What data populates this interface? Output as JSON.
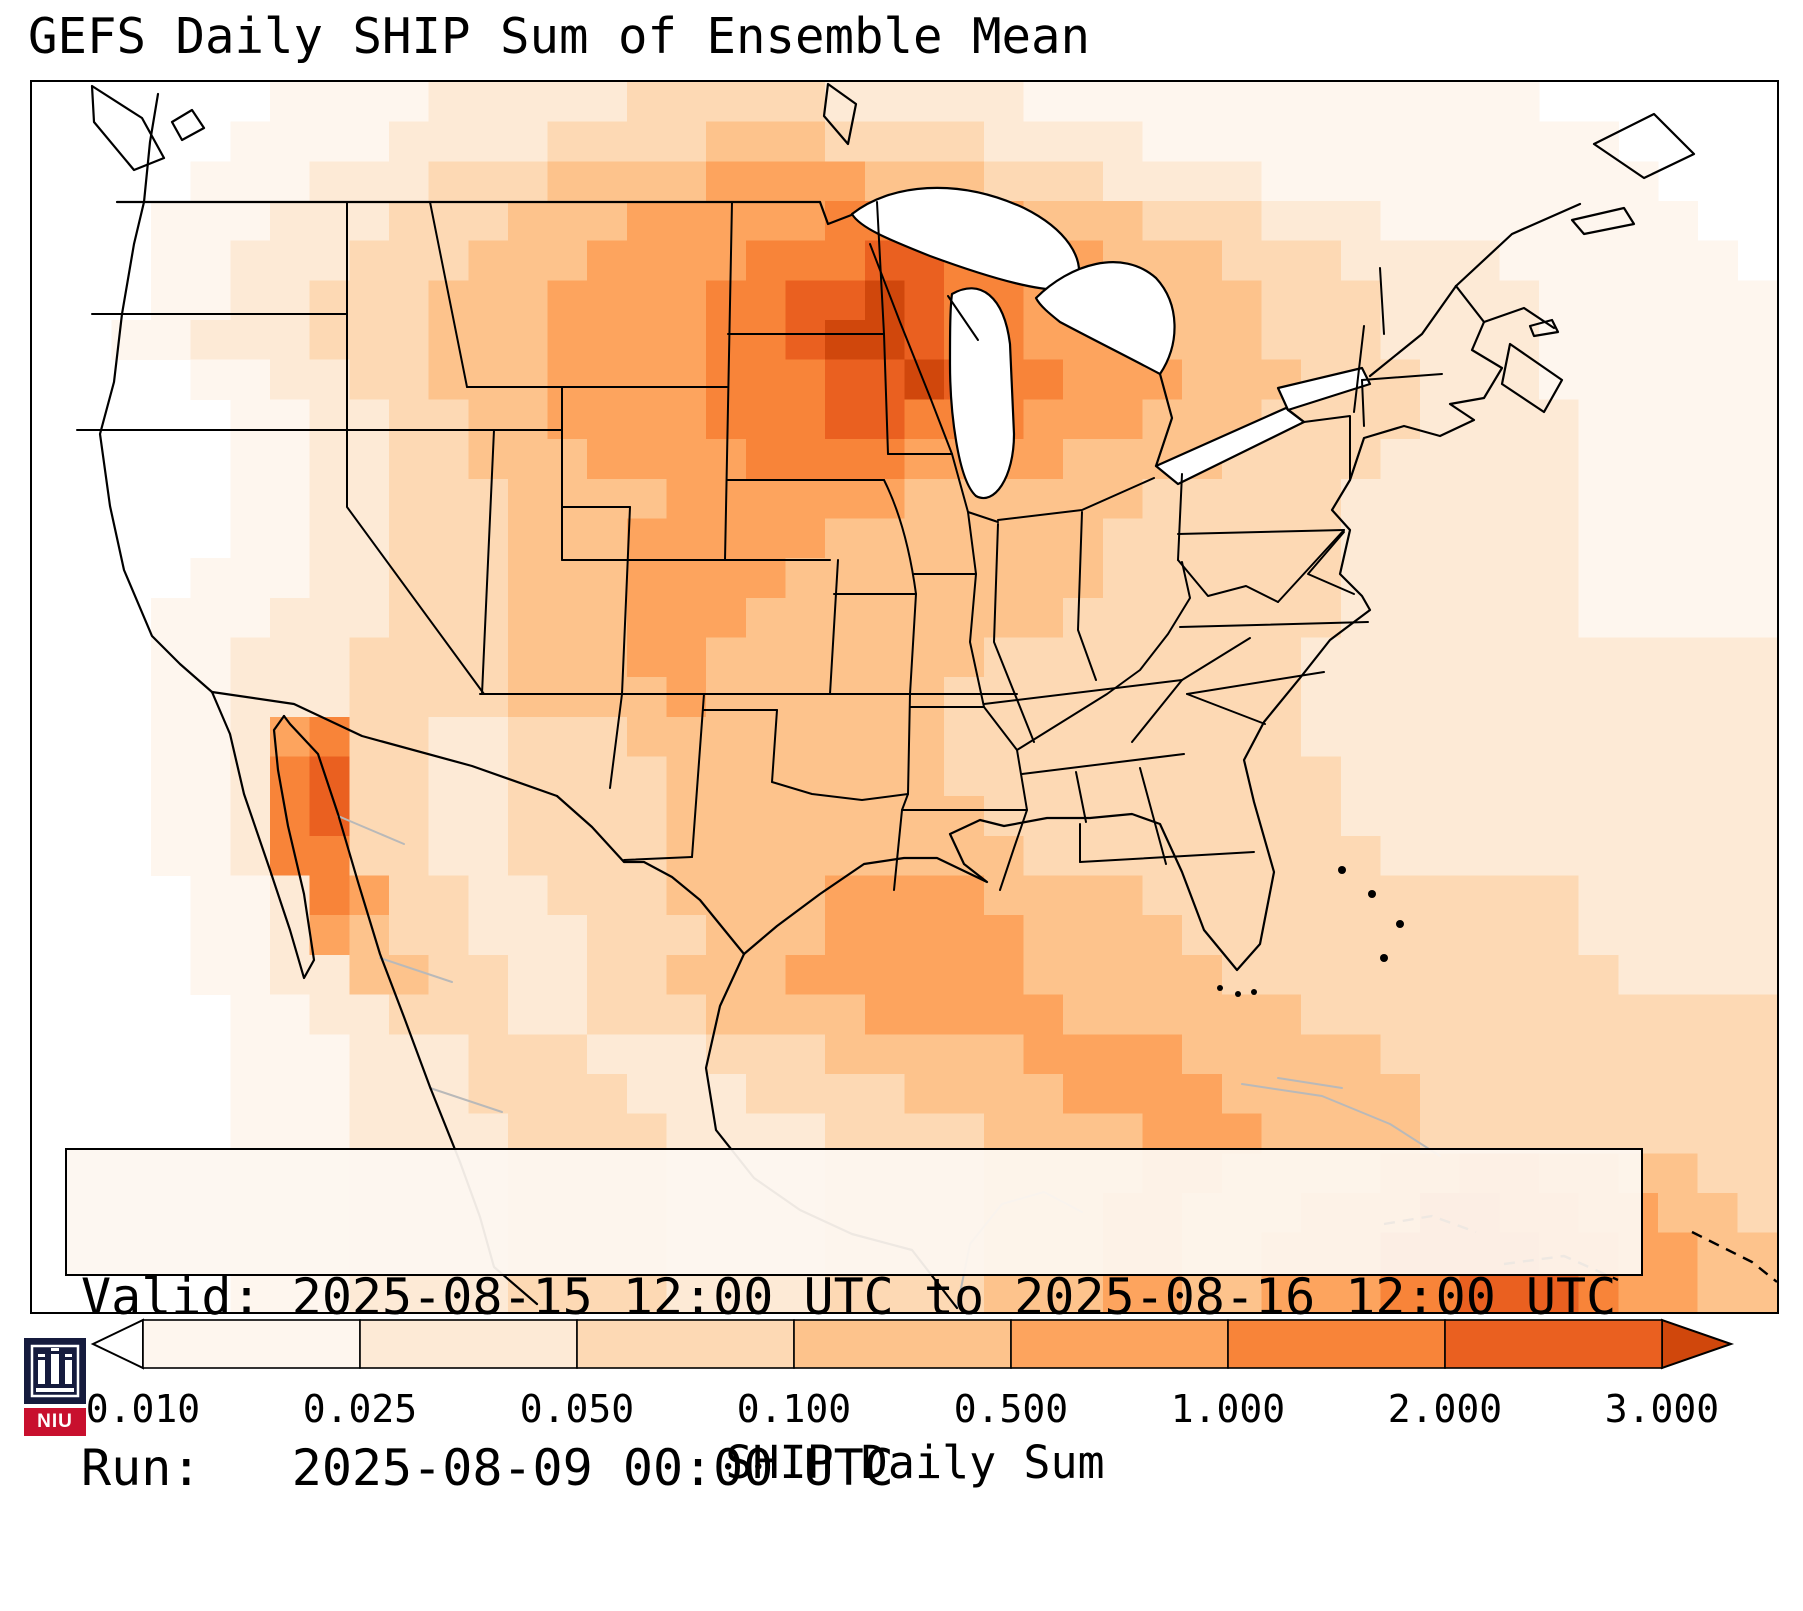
{
  "title": "GEFS Daily SHIP Sum of Ensemble Mean",
  "info_box": {
    "line1": "Valid: 2025-08-15 12:00 UTC to 2025-08-16 12:00 UTC",
    "line2": "Run:   2025-08-09 00:00 UTC"
  },
  "colorbar": {
    "label": "SHIP Daily Sum",
    "ticks": [
      "0.010",
      "0.025",
      "0.050",
      "0.100",
      "0.500",
      "1.000",
      "2.000",
      "3.000"
    ]
  },
  "logo": {
    "text": "NIU"
  },
  "chart_data": {
    "type": "heatmap",
    "title": "GEFS Daily SHIP Sum of Ensemble Mean",
    "colorbar_label": "SHIP Daily Sum",
    "level_boundaries": [
      0.01,
      0.025,
      0.05,
      0.1,
      0.5,
      1.0,
      2.0,
      3.0
    ],
    "palette": [
      "#ffffff",
      "#fef6ee",
      "#fdead6",
      "#fdd9b4",
      "#fdc38c",
      "#fda45e",
      "#f88439",
      "#ea6020",
      "#d0470c"
    ],
    "grid_cols": 44,
    "grid_rows_count": 31,
    "grid_encoding": "each character is a palette index 0-8; row 0 is the north (top) edge of the map",
    "grid_rows": [
      "00000011112222233333222221111111111111000000",
      "00000111122223333444333322221111111111110000",
      "00001112223334444555544433322221111111111000",
      "00011122233344455555666554443332221111111100",
      "00011222333444555566677665544433322221111110",
      "00011223334445555667787665554443332222111111",
      "00112223334445555667887665554443332222111111",
      "00001122334445555666778766555444333222111111",
      "00000112233445555666776665554443333222211111",
      "00000112233444555566665555444433332222211111",
      "00000112233344445555554444443333322222211111",
      "00000112233344455555444444433333322222211111",
      "00001112233344455554444444433333322222211111",
      "00011122233344455544444444333333322222211111",
      "00011222333344455444444433333333222222222222",
      "00011222333344445444444333333333222222222222",
      "00011256332233344444444333333333222222222222",
      "00011267332233334444444333333333322222222222",
      "00011267332233334444444433333333322222222222",
      "00011266332233334444444443333333332222222222",
      "00001126533223334444555544443333333333322222",
      "00001125433222333444555554444333333333322222",
      "00001122443322334445555554444433333333332222",
      "00000112233322333444455555444444333333333333",
      "00000111222333222333444445555444443333333333",
      "00000111222333322233334444555544444333333333",
      "00000111222233332222333344445554444333333333",
      "00000111222233332222333344445544445566554433",
      "00000111222233332222333344455444555776655443",
      "00000111222233332222333344455445557777665544",
      "00000111222233332222333344455445556677765544"
    ],
    "valid_period": "2025-08-15 12:00 UTC to 2025-08-16 12:00 UTC",
    "run": "2025-08-09 00:00 UTC"
  }
}
